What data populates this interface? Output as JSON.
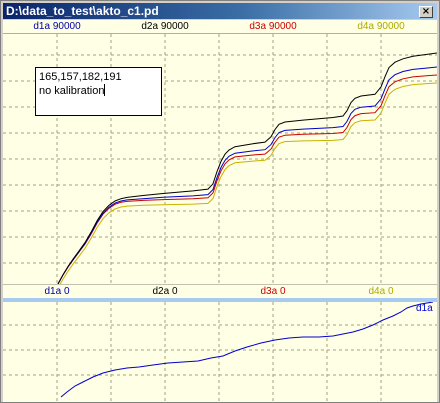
{
  "window": {
    "title": "D:\\data_to_test\\akto_c1.pd",
    "close_glyph": "×"
  },
  "top_labels": [
    {
      "text": "d1a 90000",
      "color": "#0000aa"
    },
    {
      "text": "d2a 90000",
      "color": "#000000"
    },
    {
      "text": "d3a 90000",
      "color": "#cc0000"
    },
    {
      "text": "d4a 90000",
      "color": "#aaaa00"
    }
  ],
  "bottom_labels": [
    {
      "text": "d1a 0",
      "color": "#0000aa"
    },
    {
      "text": "d2a 0",
      "color": "#000000"
    },
    {
      "text": "d3a 0",
      "color": "#cc0000"
    },
    {
      "text": "d4a 0",
      "color": "#aaaa00"
    }
  ],
  "note": {
    "line1": "165,157,182,191",
    "line2": "no kalibration"
  },
  "lower_panel": {
    "label": "d1a",
    "color": "#0000cc"
  },
  "colors": {
    "background": "#ffffe6",
    "grid": "#a0a080"
  }
}
